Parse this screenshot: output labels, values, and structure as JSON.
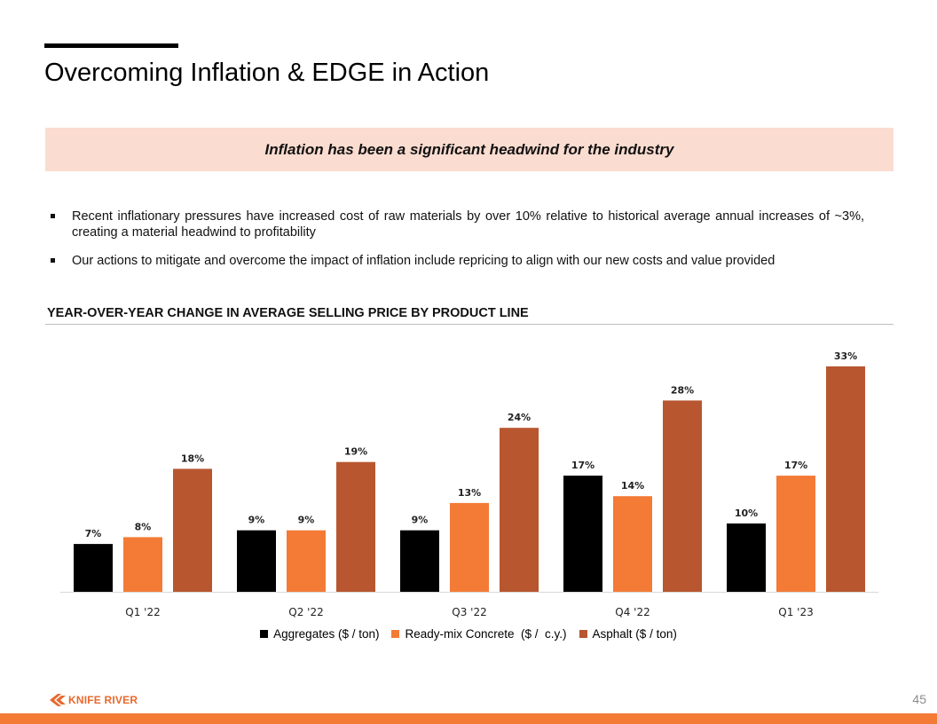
{
  "slide": {
    "title": "Overcoming Inflation & EDGE in Action",
    "banner": "Inflation has been a significant headwind for the industry",
    "bullets": [
      "Recent inflationary pressures have increased cost of raw materials by over 10% relative to historical average annual increases of ~3%, creating a material headwind to profitability",
      "Our actions to mitigate and overcome the impact of inflation include repricing to align with our new costs and value provided"
    ],
    "section_title": "YEAR-OVER-YEAR CHANGE IN AVERAGE SELLING PRICE BY PRODUCT LINE",
    "page_number": "45",
    "logo_text": "KNIFE RIVER",
    "colors": {
      "accent": "#f37b36",
      "banner_bg": "#fbdcd0",
      "logo": "#e8692d"
    }
  },
  "chart_data": {
    "type": "bar",
    "title": "YEAR-OVER-YEAR CHANGE IN AVERAGE SELLING PRICE BY PRODUCT LINE",
    "categories": [
      "Q1 '22",
      "Q2 '22",
      "Q3 '22",
      "Q4 '22",
      "Q1 '23"
    ],
    "series": [
      {
        "name": "Aggregates ($ / ton)",
        "color": "#000000",
        "values": [
          7,
          9,
          9,
          17,
          10
        ],
        "labels": [
          "7%",
          "9%",
          "9%",
          "17%",
          "10%"
        ]
      },
      {
        "name": "Ready-mix Concrete  ($ /  c.y.)",
        "color": "#f37b36",
        "values": [
          8,
          9,
          13,
          14,
          17
        ],
        "labels": [
          "8%",
          "9%",
          "13%",
          "14%",
          "17%"
        ]
      },
      {
        "name": "Asphalt ($ / ton)",
        "color": "#b85630",
        "values": [
          18,
          19,
          24,
          28,
          33
        ],
        "labels": [
          "18%",
          "19%",
          "24%",
          "28%",
          "33%"
        ]
      }
    ],
    "ylim": [
      0,
      33
    ],
    "gridlines": false,
    "legend_position": "bottom"
  }
}
